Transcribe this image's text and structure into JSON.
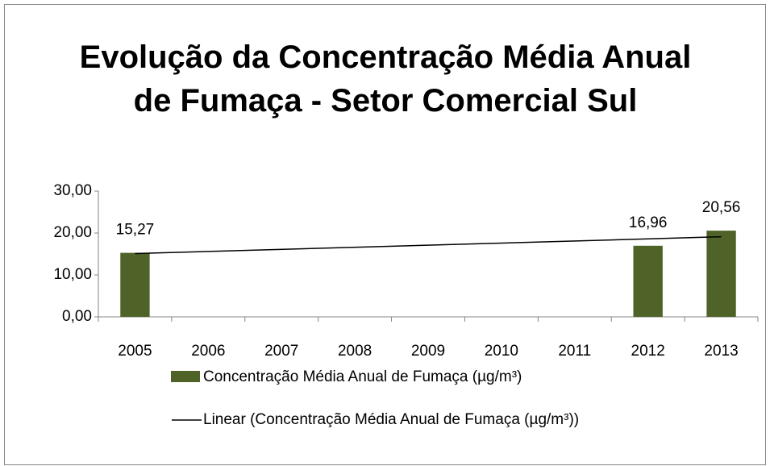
{
  "chart_data": {
    "type": "bar",
    "title": "Evolução da Concentração Média Anual de Fumaça - Setor Comercial Sul",
    "categories": [
      "2005",
      "2006",
      "2007",
      "2008",
      "2009",
      "2010",
      "2011",
      "2012",
      "2013"
    ],
    "series": [
      {
        "name": "Concentração Média Anual de Fumaça  (µg/m³)",
        "color": "#4f6228",
        "values": [
          15.27,
          null,
          null,
          null,
          null,
          null,
          null,
          16.96,
          20.56
        ],
        "value_labels": [
          "15,27",
          null,
          null,
          null,
          null,
          null,
          null,
          "16,96",
          "20,56"
        ]
      }
    ],
    "trend": {
      "name": "Linear (Concentração Média Anual de Fumaça  (µg/m³))",
      "color": "#000000",
      "values": [
        15.1,
        19.1
      ]
    },
    "ylim": [
      0,
      30
    ],
    "yticks": [
      {
        "value": 0,
        "label": "0,00"
      },
      {
        "value": 10,
        "label": "10,00"
      },
      {
        "value": 20,
        "label": "20,00"
      },
      {
        "value": 30,
        "label": "30,00"
      }
    ],
    "grid": false,
    "legend": "bottom"
  }
}
